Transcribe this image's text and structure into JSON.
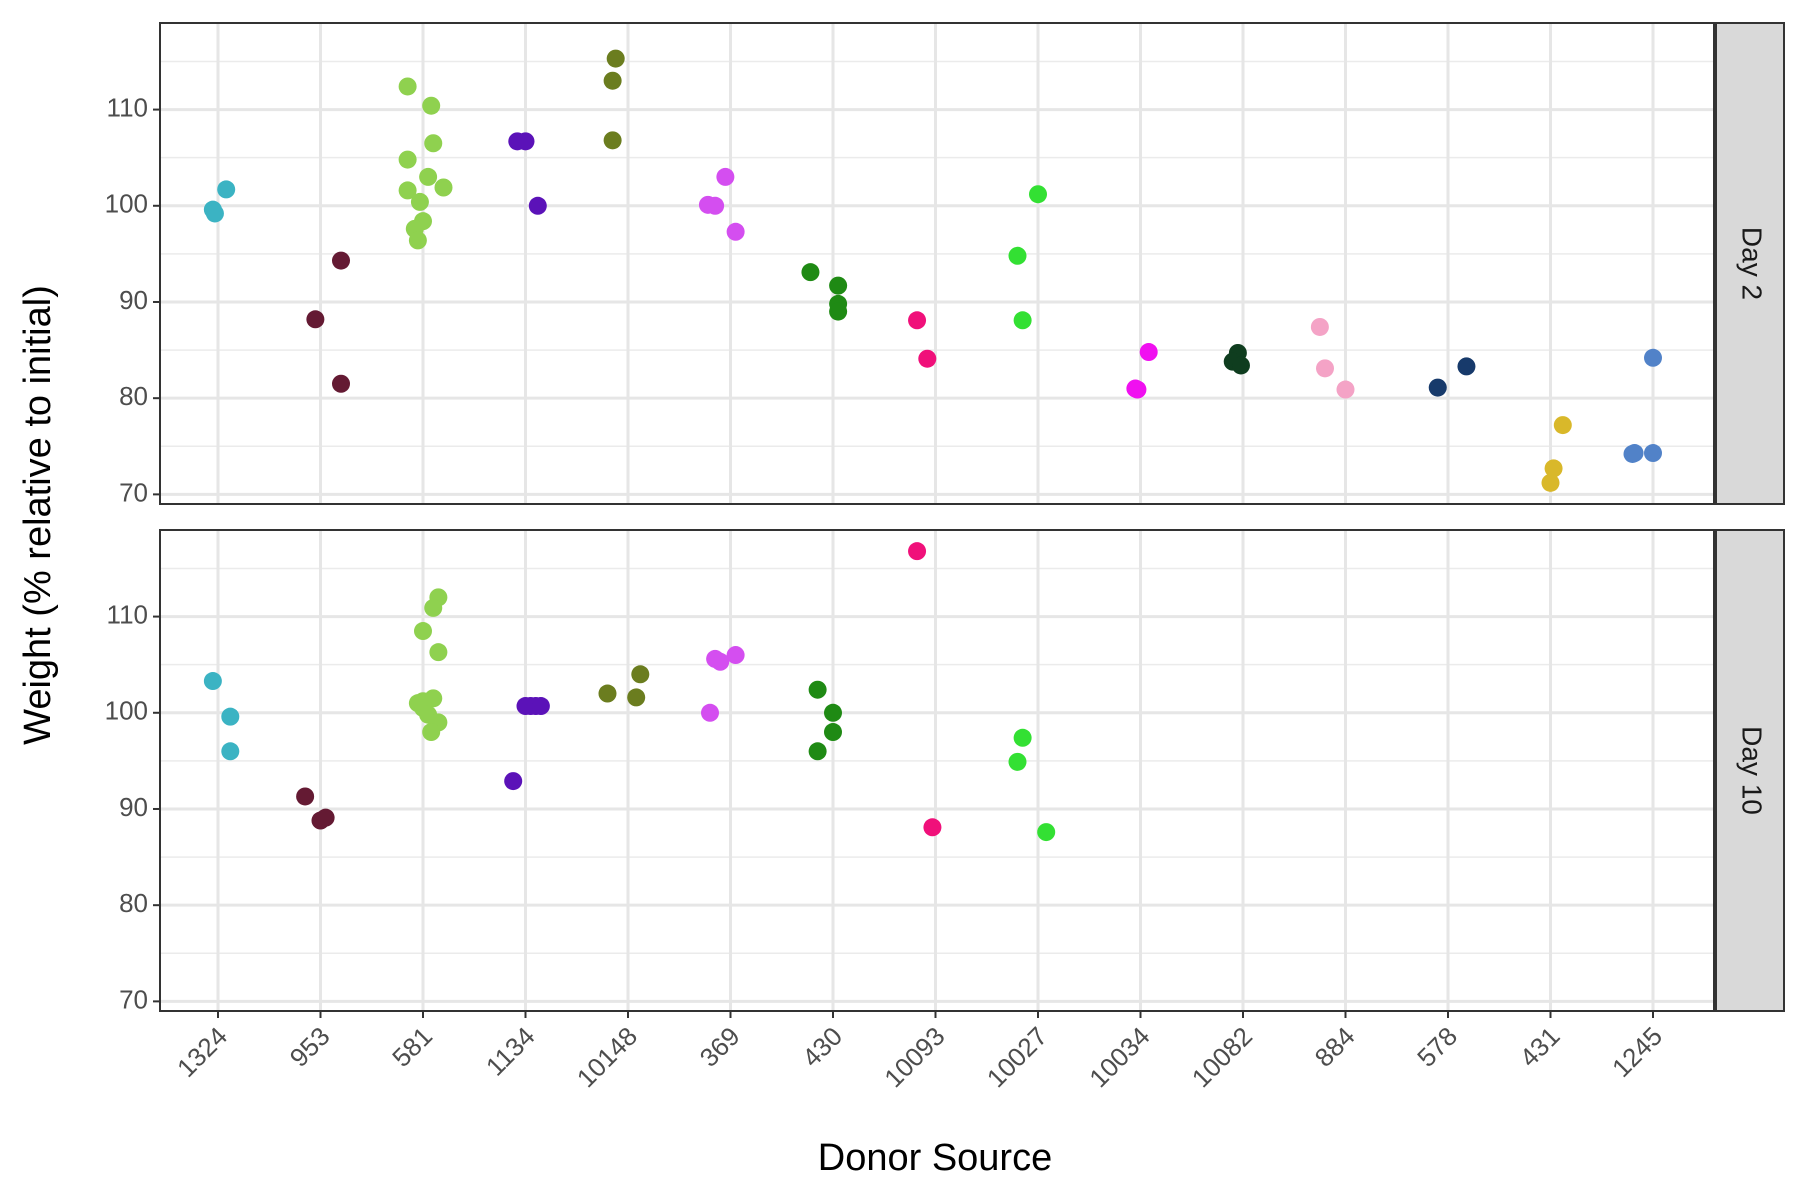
{
  "chart_data": {
    "type": "scatter",
    "xlabel": "Donor Source",
    "ylabel": "Weight (% relative to initial)",
    "categories": [
      "1324",
      "953",
      "581",
      "1134",
      "10148",
      "369",
      "430",
      "10093",
      "10027",
      "10034",
      "10082",
      "884",
      "578",
      "431",
      "1245"
    ],
    "ylim": [
      69,
      119
    ],
    "yticks": [
      70,
      80,
      90,
      100,
      110
    ],
    "grid": true,
    "legend": "none",
    "facets": [
      {
        "label": "Day 2",
        "groups": [
          {
            "category": "1324",
            "color": "#3bb3c3",
            "points": [
              [
                -0.05,
                99.6
              ],
              [
                0.08,
                101.7
              ],
              [
                -0.03,
                99.2
              ]
            ]
          },
          {
            "category": "953",
            "color": "#641a33",
            "points": [
              [
                -0.05,
                88.2
              ],
              [
                0.2,
                94.3
              ],
              [
                0.2,
                81.5
              ]
            ]
          },
          {
            "category": "581",
            "color": "#8fd14f",
            "points": [
              [
                -0.15,
                112.4
              ],
              [
                0.08,
                110.4
              ],
              [
                0.1,
                106.5
              ],
              [
                -0.15,
                104.8
              ],
              [
                0.05,
                103.0
              ],
              [
                -0.15,
                101.6
              ],
              [
                0.2,
                101.9
              ],
              [
                -0.03,
                100.4
              ],
              [
                0.0,
                98.4
              ],
              [
                -0.08,
                97.6
              ],
              [
                -0.05,
                96.4
              ]
            ]
          },
          {
            "category": "1134",
            "color": "#5b12b8",
            "points": [
              [
                -0.08,
                106.7
              ],
              [
                0.0,
                106.7
              ],
              [
                0.12,
                100.0
              ]
            ]
          },
          {
            "category": "10148",
            "color": "#6b7d1f",
            "points": [
              [
                -0.12,
                115.3
              ],
              [
                -0.15,
                113.0
              ],
              [
                -0.15,
                106.8
              ]
            ]
          },
          {
            "category": "369",
            "color": "#d44ef0",
            "points": [
              [
                -0.15,
                100.0
              ],
              [
                -0.22,
                100.1
              ],
              [
                -0.05,
                103.0
              ],
              [
                0.05,
                97.3
              ]
            ]
          },
          {
            "category": "430",
            "color": "#1f8a14",
            "points": [
              [
                -0.22,
                93.1
              ],
              [
                0.05,
                91.7
              ],
              [
                0.05,
                89.8
              ],
              [
                0.05,
                89.0
              ]
            ]
          },
          {
            "category": "10093",
            "color": "#f0107a",
            "points": [
              [
                -0.18,
                88.1
              ],
              [
                -0.08,
                84.1
              ]
            ]
          },
          {
            "category": "10027",
            "color": "#33e033",
            "points": [
              [
                0.0,
                101.2
              ],
              [
                -0.2,
                94.8
              ],
              [
                -0.15,
                88.1
              ]
            ]
          },
          {
            "category": "10034",
            "color": "#f010f0",
            "points": [
              [
                -0.05,
                81.0
              ],
              [
                0.08,
                84.8
              ],
              [
                -0.03,
                80.9
              ]
            ]
          },
          {
            "category": "10082",
            "color": "#0f3d1f",
            "points": [
              [
                -0.05,
                84.7
              ],
              [
                -0.1,
                83.8
              ],
              [
                -0.02,
                83.4
              ]
            ]
          },
          {
            "category": "884",
            "color": "#f4a3c6",
            "points": [
              [
                -0.25,
                87.4
              ],
              [
                -0.2,
                83.1
              ],
              [
                0.0,
                80.9
              ]
            ]
          },
          {
            "category": "578",
            "color": "#173a6b",
            "points": [
              [
                -0.1,
                81.1
              ],
              [
                0.18,
                83.3
              ]
            ]
          },
          {
            "category": "431",
            "color": "#d9b82a",
            "points": [
              [
                0.0,
                71.2
              ],
              [
                0.03,
                72.7
              ],
              [
                0.12,
                77.2
              ]
            ]
          },
          {
            "category": "1245",
            "color": "#5182c8",
            "points": [
              [
                -0.18,
                74.3
              ],
              [
                -0.2,
                74.2
              ],
              [
                0.0,
                74.3
              ],
              [
                0.0,
                84.2
              ]
            ]
          }
        ]
      },
      {
        "label": "Day 10",
        "groups": [
          {
            "category": "1324",
            "color": "#3bb3c3",
            "points": [
              [
                -0.05,
                103.3
              ],
              [
                0.12,
                99.6
              ],
              [
                0.12,
                96.0
              ]
            ]
          },
          {
            "category": "953",
            "color": "#641a33",
            "points": [
              [
                -0.15,
                91.3
              ],
              [
                0.0,
                88.8
              ],
              [
                0.05,
                89.1
              ]
            ]
          },
          {
            "category": "581",
            "color": "#8fd14f",
            "points": [
              [
                0.15,
                112.0
              ],
              [
                0.1,
                110.9
              ],
              [
                0.0,
                108.5
              ],
              [
                0.15,
                106.3
              ],
              [
                -0.05,
                101.0
              ],
              [
                0.1,
                101.5
              ],
              [
                0.0,
                101.2
              ],
              [
                0.0,
                100.5
              ],
              [
                0.05,
                99.8
              ],
              [
                0.15,
                99.0
              ],
              [
                0.08,
                98.0
              ]
            ]
          },
          {
            "category": "1134",
            "color": "#5b12b8",
            "points": [
              [
                0.0,
                100.7
              ],
              [
                0.05,
                100.7
              ],
              [
                0.1,
                100.7
              ],
              [
                0.15,
                100.7
              ],
              [
                -0.12,
                92.9
              ]
            ]
          },
          {
            "category": "10148",
            "color": "#6b7d1f",
            "points": [
              [
                -0.2,
                102.0
              ],
              [
                0.12,
                104.0
              ],
              [
                0.08,
                101.6
              ]
            ]
          },
          {
            "category": "369",
            "color": "#d44ef0",
            "points": [
              [
                -0.15,
                105.6
              ],
              [
                -0.1,
                105.3
              ],
              [
                0.05,
                106.0
              ],
              [
                -0.2,
                100.0
              ]
            ]
          },
          {
            "category": "430",
            "color": "#1f8a14",
            "points": [
              [
                -0.15,
                102.4
              ],
              [
                0.0,
                100.0
              ],
              [
                0.0,
                98.0
              ],
              [
                -0.15,
                96.0
              ]
            ]
          },
          {
            "category": "10093",
            "color": "#f0107a",
            "points": [
              [
                -0.18,
                116.8
              ],
              [
                -0.03,
                88.1
              ]
            ]
          },
          {
            "category": "10027",
            "color": "#33e033",
            "points": [
              [
                -0.15,
                97.4
              ],
              [
                -0.2,
                94.9
              ],
              [
                0.08,
                87.6
              ]
            ]
          },
          {
            "category": "10034",
            "color": "#f010f0",
            "points": []
          },
          {
            "category": "10082",
            "color": "#0f3d1f",
            "points": []
          },
          {
            "category": "884",
            "color": "#f4a3c6",
            "points": []
          },
          {
            "category": "578",
            "color": "#173a6b",
            "points": []
          },
          {
            "category": "431",
            "color": "#d9b82a",
            "points": []
          },
          {
            "category": "1245",
            "color": "#5182c8",
            "points": []
          }
        ]
      }
    ]
  }
}
